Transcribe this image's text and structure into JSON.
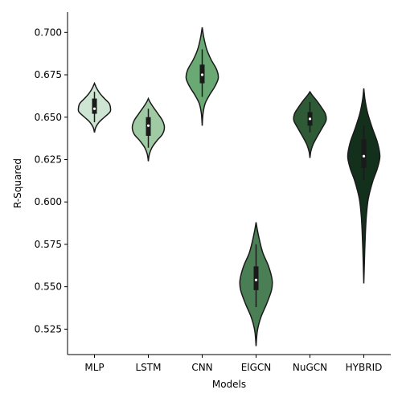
{
  "chart_data": {
    "type": "violin",
    "xlabel": "Models",
    "ylabel": "R-Squared",
    "ylim": [
      0.51,
      0.712
    ],
    "yticks": [
      0.525,
      0.55,
      0.575,
      0.6,
      0.625,
      0.65,
      0.675,
      0.7
    ],
    "ytick_labels": [
      "0.525",
      "0.550",
      "0.575",
      "0.600",
      "0.625",
      "0.650",
      "0.675",
      "0.700"
    ],
    "categories": [
      "MLP",
      "LSTM",
      "CNN",
      "ElGCN",
      "NuGCN",
      "HYBRID"
    ],
    "colors": [
      "#cde5d2",
      "#9fcaa3",
      "#6aa874",
      "#4a7e55",
      "#2e5a36",
      "#13301d"
    ],
    "series": [
      {
        "min": 0.641,
        "max": 0.67,
        "whisker_low": 0.647,
        "q1": 0.652,
        "median": 0.655,
        "q3": 0.661,
        "whisker_high": 0.665,
        "profile": [
          [
            0.641,
            0
          ],
          [
            0.644,
            0.08
          ],
          [
            0.647,
            0.28
          ],
          [
            0.65,
            0.62
          ],
          [
            0.653,
            0.96
          ],
          [
            0.655,
            1.0
          ],
          [
            0.658,
            0.92
          ],
          [
            0.661,
            0.62
          ],
          [
            0.664,
            0.34
          ],
          [
            0.667,
            0.14
          ],
          [
            0.67,
            0
          ]
        ]
      },
      {
        "min": 0.624,
        "max": 0.661,
        "whisker_low": 0.632,
        "q1": 0.639,
        "median": 0.645,
        "q3": 0.65,
        "whisker_high": 0.655,
        "profile": [
          [
            0.624,
            0
          ],
          [
            0.628,
            0.06
          ],
          [
            0.632,
            0.22
          ],
          [
            0.636,
            0.52
          ],
          [
            0.64,
            0.88
          ],
          [
            0.644,
            1.0
          ],
          [
            0.648,
            0.88
          ],
          [
            0.652,
            0.6
          ],
          [
            0.656,
            0.3
          ],
          [
            0.659,
            0.1
          ],
          [
            0.661,
            0
          ]
        ]
      },
      {
        "min": 0.645,
        "max": 0.703,
        "whisker_low": 0.662,
        "q1": 0.67,
        "median": 0.675,
        "q3": 0.681,
        "whisker_high": 0.69,
        "profile": [
          [
            0.645,
            0
          ],
          [
            0.652,
            0.05
          ],
          [
            0.658,
            0.18
          ],
          [
            0.663,
            0.45
          ],
          [
            0.668,
            0.78
          ],
          [
            0.673,
            1.0
          ],
          [
            0.678,
            0.9
          ],
          [
            0.684,
            0.55
          ],
          [
            0.69,
            0.28
          ],
          [
            0.697,
            0.1
          ],
          [
            0.703,
            0
          ]
        ]
      },
      {
        "min": 0.515,
        "max": 0.588,
        "whisker_low": 0.538,
        "q1": 0.548,
        "median": 0.554,
        "q3": 0.562,
        "whisker_high": 0.575,
        "profile": [
          [
            0.515,
            0
          ],
          [
            0.524,
            0.08
          ],
          [
            0.532,
            0.3
          ],
          [
            0.54,
            0.66
          ],
          [
            0.548,
            0.96
          ],
          [
            0.554,
            1.0
          ],
          [
            0.562,
            0.78
          ],
          [
            0.57,
            0.42
          ],
          [
            0.578,
            0.2
          ],
          [
            0.584,
            0.07
          ],
          [
            0.588,
            0
          ]
        ]
      },
      {
        "min": 0.626,
        "max": 0.665,
        "whisker_low": 0.641,
        "q1": 0.645,
        "median": 0.649,
        "q3": 0.653,
        "whisker_high": 0.659,
        "profile": [
          [
            0.626,
            0
          ],
          [
            0.63,
            0.06
          ],
          [
            0.634,
            0.2
          ],
          [
            0.638,
            0.42
          ],
          [
            0.643,
            0.72
          ],
          [
            0.648,
            1.0
          ],
          [
            0.652,
            0.96
          ],
          [
            0.656,
            0.7
          ],
          [
            0.66,
            0.4
          ],
          [
            0.663,
            0.14
          ],
          [
            0.665,
            0
          ]
        ]
      },
      {
        "min": 0.552,
        "max": 0.667,
        "whisker_low": 0.613,
        "q1": 0.62,
        "median": 0.627,
        "q3": 0.637,
        "whisker_high": 0.645,
        "profile": [
          [
            0.552,
            0
          ],
          [
            0.562,
            0.03
          ],
          [
            0.572,
            0.06
          ],
          [
            0.582,
            0.1
          ],
          [
            0.592,
            0.16
          ],
          [
            0.602,
            0.28
          ],
          [
            0.612,
            0.55
          ],
          [
            0.62,
            0.85
          ],
          [
            0.627,
            1.0
          ],
          [
            0.635,
            0.85
          ],
          [
            0.643,
            0.55
          ],
          [
            0.652,
            0.25
          ],
          [
            0.66,
            0.08
          ],
          [
            0.667,
            0
          ]
        ]
      }
    ]
  }
}
